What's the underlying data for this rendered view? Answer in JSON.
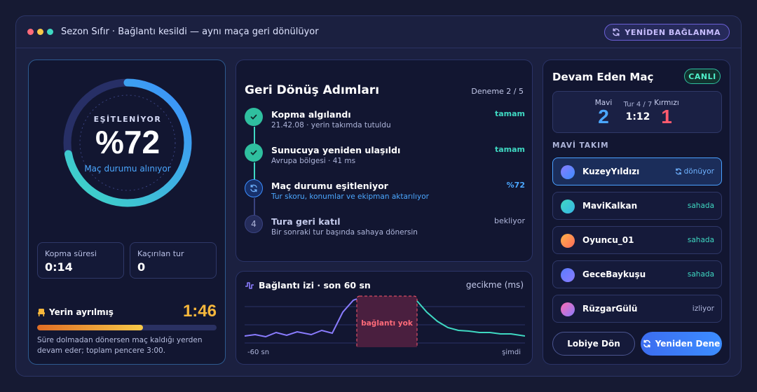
{
  "window": {
    "title": "Sezon Sıfır · Bağlantı kesildi — aynı maça geri dönülüyor",
    "reconnect_label": "YENİDEN BAĞLANMA"
  },
  "sync": {
    "caption": "EŞİTLENİYOR",
    "percent_label": "%72",
    "progress": 0.72,
    "subtitle": "Maç durumu alınıyor"
  },
  "stats": [
    {
      "label": "Kopma süresi",
      "value": "0:14"
    },
    {
      "label": "Kaçırılan tur",
      "value": "0"
    }
  ],
  "seat": {
    "label": "Yerin ayrılmış",
    "timer": "1:46",
    "progress": 0.59,
    "note": "Süre dolmadan dönersen maç kaldığı yerden devam eder; toplam pencere 3:00."
  },
  "steps": {
    "title": "Geri Dönüş Adımları",
    "attempt": "Deneme 2 / 5",
    "items": [
      {
        "title": "Kopma algılandı",
        "sub": "21.42.08 · yerin takımda tutuldu",
        "status": "tamam",
        "state": "done",
        "icon": "check-icon"
      },
      {
        "title": "Sunucuya yeniden ulaşıldı",
        "sub": "Avrupa bölgesi · 41 ms",
        "status": "tamam",
        "state": "done",
        "icon": "check-icon"
      },
      {
        "title": "Maç durumu eşitleniyor",
        "sub": "Tur skoru, konumlar ve ekipman aktarılıyor",
        "status": "%72",
        "state": "active",
        "icon": "sync-icon"
      },
      {
        "title": "Tura geri katıl",
        "sub": "Bir sonraki tur başında sahaya dönersin",
        "status": "bekliyor",
        "state": "pending",
        "number": "4"
      }
    ]
  },
  "trace": {
    "title": "Bağlantı izi · son 60 sn",
    "unit": "gecikme (ms)",
    "gap_label": "bağlantı yok",
    "x_start": "-60 sn",
    "x_end": "şimdi"
  },
  "match": {
    "title": "Devam Eden Maç",
    "live": "CANLI",
    "blue_name": "Mavi",
    "blue_score": "2",
    "round": "Tur 4 / 7",
    "clock": "1:12",
    "red_name": "Kırmızı",
    "red_score": "1",
    "team_heading": "MAVİ TAKIM",
    "players": [
      {
        "name": "KuzeyYıldızı",
        "status": "dönüyor",
        "kind": "returning",
        "color": "#8a7cff"
      },
      {
        "name": "MaviKalkan",
        "status": "sahada",
        "kind": "field",
        "color": "#38d0e6"
      },
      {
        "name": "Oyuncu_01",
        "status": "sahada",
        "kind": "field",
        "color": "#ff8a5c"
      },
      {
        "name": "GeceBaykuşu",
        "status": "sahada",
        "kind": "field",
        "color": "#6b7cff"
      },
      {
        "name": "RüzgarGülü",
        "status": "izliyor",
        "kind": "watching",
        "color": "#c06bd8"
      }
    ],
    "lobby_button": "Lobiye Dön",
    "retry_button": "Yeniden Dene"
  },
  "colors": {
    "accent_teal": "#3fd8c2",
    "accent_blue": "#4ba7ff",
    "timer_orange": "#f6b73c",
    "danger_red": "#ff5a6e"
  }
}
